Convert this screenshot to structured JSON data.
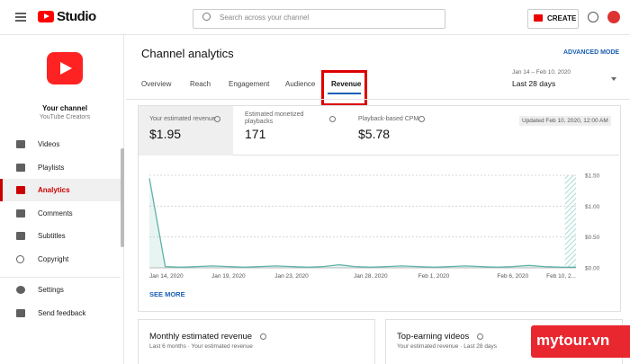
{
  "header": {
    "app_name": "Studio",
    "search_placeholder": "Search across your channel",
    "create_button": "CREATE"
  },
  "sidebar": {
    "channel_name": "Your channel",
    "channel_subtitle": "YouTube Creators",
    "nav": [
      "Videos",
      "Playlists",
      "Analytics",
      "Comments",
      "Subtitles",
      "Copyright"
    ],
    "bottom_nav": [
      "Settings",
      "Send feedback"
    ]
  },
  "page": {
    "title": "Channel analytics",
    "advanced_mode": "ADVANCED MODE",
    "tabs": [
      "Overview",
      "Reach",
      "Engagement",
      "Audience",
      "Revenue"
    ],
    "date_range": "Jan 14 – Feb 10, 2020",
    "period": "Last 28 days"
  },
  "metrics": [
    {
      "label": "Your estimated revenue",
      "value": "$1.95"
    },
    {
      "label": "Estimated monetized playbacks",
      "value": "171"
    },
    {
      "label": "Playback-based CPM",
      "value": "$5.78"
    }
  ],
  "updated": "Updated Feb 10, 2020, 12:00 AM",
  "chart": {
    "type": "line",
    "color": "#5fb3a8",
    "categories": [
      "Jan 14, 2020",
      null,
      null,
      null,
      null,
      "Jan 19, 2020",
      null,
      null,
      null,
      "Jan 23, 2020",
      null,
      null,
      null,
      null,
      "Jan 28, 2020",
      null,
      null,
      null,
      "Feb 1, 2020",
      null,
      null,
      null,
      null,
      "Feb 6, 2020",
      null,
      null,
      null,
      "Feb 10, 2..."
    ],
    "values": [
      1.45,
      0.02,
      0.01,
      0.02,
      0.03,
      0.02,
      0.01,
      0.02,
      0.03,
      0.02,
      0.01,
      0.02,
      0.05,
      0.02,
      0.01,
      0.02,
      0.03,
      0.02,
      0.01,
      0.02,
      0.03,
      0.02,
      0.01,
      0.02,
      0.04,
      0.02,
      0.01,
      0.01
    ],
    "ylim": [
      0,
      1.5
    ],
    "yticks": [
      {
        "value": 0,
        "label": "$0.00"
      },
      {
        "value": 0.5,
        "label": "$0.50"
      },
      {
        "value": 1,
        "label": "$1.00"
      },
      {
        "value": 1.5,
        "label": "$1.50"
      }
    ]
  },
  "see_more": "SEE MORE",
  "cards": [
    {
      "title": "Monthly estimated revenue",
      "subtitle": "Last 6 months · Your estimated revenue"
    },
    {
      "title": "Top-earning videos",
      "subtitle": "Your estimated revenue · Last 28 days"
    }
  ],
  "watermark": "mytour.vn"
}
